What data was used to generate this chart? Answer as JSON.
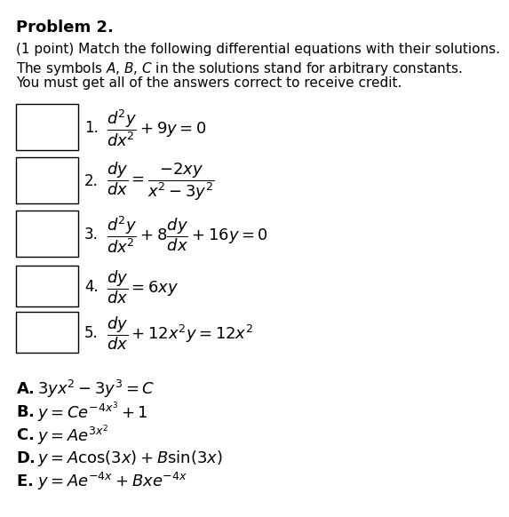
{
  "title": "Problem 2.",
  "intro_line1": "(1 point) Match the following differential equations with their solutions.",
  "intro_line2": "The symbols $A$, $B$, $C$ in the solutions stand for arbitrary constants.",
  "intro_line3": "You must get all of the answers correct to receive credit.",
  "equations": [
    {
      "num": "1.",
      "latex": "$\\dfrac{d^2y}{dx^2} + 9y = 0$"
    },
    {
      "num": "2.",
      "latex": "$\\dfrac{dy}{dx} = \\dfrac{-2xy}{x^2 - 3y^2}$"
    },
    {
      "num": "3.",
      "latex": "$\\dfrac{d^2y}{dx^2} + 8\\dfrac{dy}{dx} + 16y = 0$"
    },
    {
      "num": "4.",
      "latex": "$\\dfrac{dy}{dx} = 6xy$"
    },
    {
      "num": "5.",
      "latex": "$\\dfrac{dy}{dx} + 12x^2y = 12x^2$"
    }
  ],
  "solutions": [
    {
      "label": "A.",
      "latex": "$3yx^2 - 3y^3 = C$"
    },
    {
      "label": "B.",
      "latex": "$y = Ce^{-4x^3} + 1$"
    },
    {
      "label": "C.",
      "latex": "$y = Ae^{3x^2}$"
    },
    {
      "label": "D.",
      "latex": "$y = A\\cos(3x) + B\\sin(3x)$"
    },
    {
      "label": "E.",
      "latex": "$y = Ae^{-4x} + Bxe^{-4x}$"
    }
  ],
  "bg_color": "#ffffff",
  "text_color": "#000000",
  "box_color": "#000000"
}
